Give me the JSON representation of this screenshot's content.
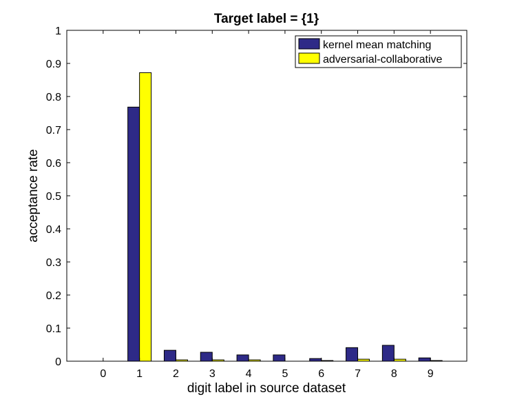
{
  "chart_data": {
    "type": "bar",
    "title": "Target label = {1}",
    "xlabel": "digit label in source dataset",
    "ylabel": "acceptance rate",
    "categories": [
      "0",
      "1",
      "2",
      "3",
      "4",
      "5",
      "6",
      "7",
      "8",
      "9"
    ],
    "series": [
      {
        "name": "kernel mean matching",
        "color": "#2e2a87",
        "values": [
          0,
          0.768,
          0.033,
          0.027,
          0.019,
          0.019,
          0.008,
          0.041,
          0.048,
          0.01
        ]
      },
      {
        "name": "adversarial-collaborative",
        "color": "#ffff00",
        "values": [
          0,
          0.872,
          0.004,
          0.004,
          0.004,
          0,
          0.002,
          0.006,
          0.006,
          0.002
        ]
      }
    ],
    "ylim": [
      0,
      1
    ],
    "yticks": [
      "0",
      "0.1",
      "0.2",
      "0.3",
      "0.4",
      "0.5",
      "0.6",
      "0.7",
      "0.8",
      "0.9",
      "1"
    ],
    "legend": "top-right",
    "grid": false
  }
}
